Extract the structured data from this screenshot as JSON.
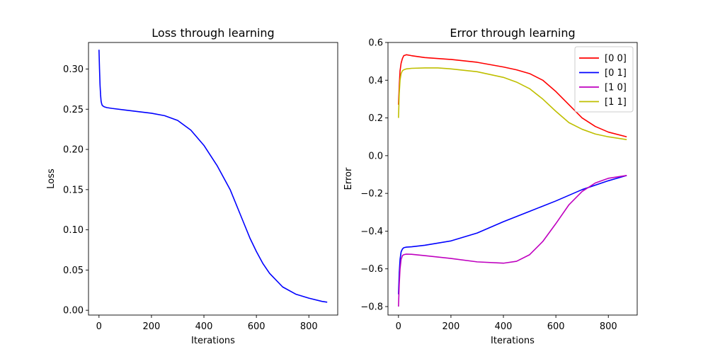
{
  "chart_data": [
    {
      "type": "line",
      "title": "Loss through learning",
      "xlabel": "Iterations",
      "ylabel": "Loss",
      "xlim": [
        -40,
        910
      ],
      "ylim": [
        -0.006,
        0.333
      ],
      "xticks": [
        0,
        200,
        400,
        600,
        800
      ],
      "xtick_labels": [
        "0",
        "200",
        "400",
        "600",
        "800"
      ],
      "yticks": [
        0.0,
        0.05,
        0.1,
        0.15,
        0.2,
        0.25,
        0.3
      ],
      "ytick_labels": [
        "0.00",
        "0.05",
        "0.10",
        "0.15",
        "0.20",
        "0.25",
        "0.30"
      ],
      "grid": false,
      "series": [
        {
          "color": "#0000ff",
          "x": [
            0,
            2,
            4,
            6,
            8,
            10,
            12,
            15,
            20,
            30,
            50,
            100,
            150,
            200,
            250,
            300,
            350,
            400,
            450,
            500,
            550,
            575,
            600,
            625,
            650,
            700,
            750,
            800,
            850,
            870
          ],
          "y": [
            0.324,
            0.3,
            0.28,
            0.268,
            0.26,
            0.257,
            0.255,
            0.254,
            0.253,
            0.252,
            0.251,
            0.249,
            0.247,
            0.245,
            0.242,
            0.236,
            0.224,
            0.205,
            0.18,
            0.15,
            0.11,
            0.09,
            0.073,
            0.058,
            0.046,
            0.029,
            0.02,
            0.015,
            0.011,
            0.01
          ]
        }
      ]
    },
    {
      "type": "line",
      "title": "Error through learning",
      "xlabel": "Iterations",
      "ylabel": "Error",
      "xlim": [
        -40,
        910
      ],
      "ylim": [
        -0.845,
        0.6
      ],
      "xticks": [
        0,
        200,
        400,
        600,
        800
      ],
      "xtick_labels": [
        "0",
        "200",
        "400",
        "600",
        "800"
      ],
      "yticks": [
        -0.8,
        -0.6,
        -0.4,
        -0.2,
        0.0,
        0.2,
        0.4,
        0.6
      ],
      "ytick_labels": [
        "−0.8",
        "−0.6",
        "−0.4",
        "−0.2",
        "0.0",
        "0.2",
        "0.4",
        "0.6"
      ],
      "grid": false,
      "legend": "top-right",
      "series": [
        {
          "name": "[0 0]",
          "color": "#ff0000",
          "x": [
            0,
            3,
            6,
            10,
            15,
            20,
            30,
            50,
            100,
            200,
            300,
            400,
            450,
            500,
            550,
            600,
            650,
            700,
            750,
            800,
            870
          ],
          "y": [
            0.27,
            0.37,
            0.45,
            0.49,
            0.515,
            0.53,
            0.535,
            0.53,
            0.52,
            0.51,
            0.495,
            0.47,
            0.455,
            0.435,
            0.4,
            0.34,
            0.27,
            0.2,
            0.155,
            0.125,
            0.1
          ]
        },
        {
          "name": "[0 1]",
          "color": "#0000ff",
          "x": [
            0,
            3,
            6,
            10,
            15,
            20,
            30,
            50,
            100,
            200,
            300,
            400,
            500,
            600,
            700,
            800,
            870
          ],
          "y": [
            -0.735,
            -0.62,
            -0.55,
            -0.51,
            -0.495,
            -0.488,
            -0.485,
            -0.483,
            -0.475,
            -0.452,
            -0.41,
            -0.35,
            -0.295,
            -0.24,
            -0.18,
            -0.133,
            -0.105
          ]
        },
        {
          "name": "[1 0]",
          "color": "#bf00bf",
          "x": [
            0,
            3,
            6,
            10,
            15,
            20,
            30,
            50,
            100,
            200,
            300,
            400,
            450,
            500,
            550,
            600,
            650,
            700,
            750,
            800,
            870
          ],
          "y": [
            -0.8,
            -0.68,
            -0.6,
            -0.55,
            -0.53,
            -0.525,
            -0.522,
            -0.523,
            -0.53,
            -0.545,
            -0.563,
            -0.57,
            -0.56,
            -0.525,
            -0.455,
            -0.36,
            -0.26,
            -0.19,
            -0.145,
            -0.12,
            -0.105
          ]
        },
        {
          "name": "[1 1]",
          "color": "#bfbf00",
          "x": [
            0,
            3,
            6,
            10,
            15,
            20,
            30,
            50,
            100,
            150,
            200,
            300,
            400,
            450,
            500,
            550,
            600,
            650,
            700,
            750,
            800,
            870
          ],
          "y": [
            0.2,
            0.33,
            0.4,
            0.435,
            0.45,
            0.455,
            0.46,
            0.463,
            0.465,
            0.465,
            0.46,
            0.445,
            0.415,
            0.39,
            0.355,
            0.3,
            0.235,
            0.175,
            0.14,
            0.115,
            0.1,
            0.085
          ]
        }
      ]
    }
  ]
}
